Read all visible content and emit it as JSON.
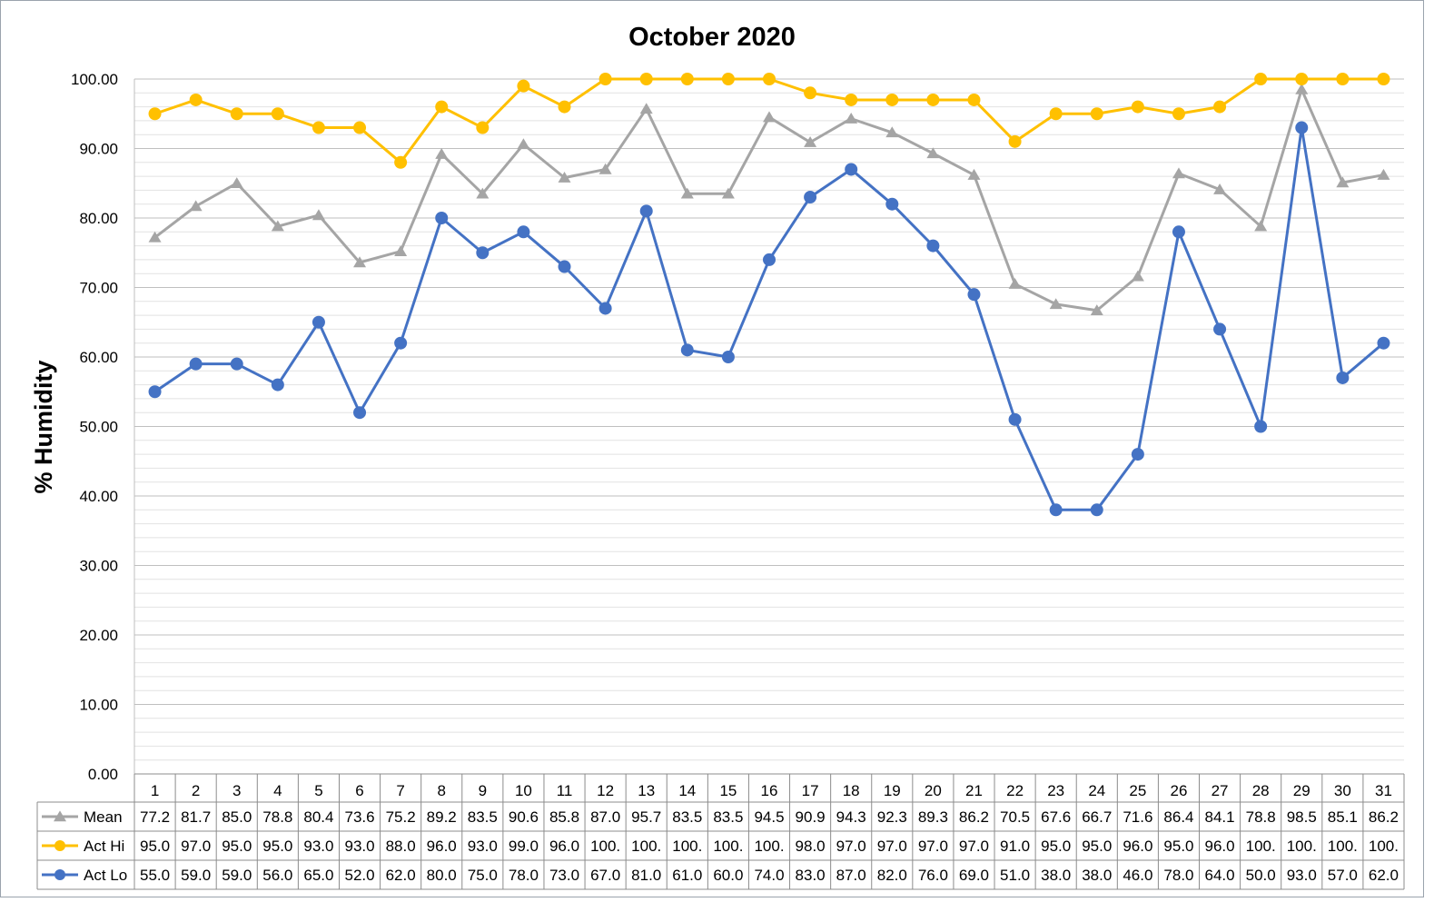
{
  "chart_data": {
    "type": "line",
    "title": "October 2020",
    "xlabel": "",
    "ylabel": "% Humidity",
    "ylim": [
      0,
      100
    ],
    "y_major_step": 10,
    "y_minor_step": 2,
    "y_tick_labels": [
      "0.00",
      "10.00",
      "20.00",
      "30.00",
      "40.00",
      "50.00",
      "60.00",
      "70.00",
      "80.00",
      "90.00",
      "100.00"
    ],
    "grid": true,
    "legend": "data-table-below",
    "categories": [
      "1",
      "2",
      "3",
      "4",
      "5",
      "6",
      "7",
      "8",
      "9",
      "10",
      "11",
      "12",
      "13",
      "14",
      "15",
      "16",
      "17",
      "18",
      "19",
      "20",
      "21",
      "22",
      "23",
      "24",
      "25",
      "26",
      "27",
      "28",
      "29",
      "30",
      "31"
    ],
    "series": [
      {
        "name": "Mean",
        "marker": "triangle",
        "color": "#a5a5a5",
        "values": [
          77.2,
          81.7,
          85.0,
          78.8,
          80.4,
          73.6,
          75.2,
          89.2,
          83.5,
          90.6,
          85.8,
          87.0,
          95.7,
          83.5,
          83.5,
          94.5,
          90.9,
          94.3,
          92.3,
          89.3,
          86.2,
          70.5,
          67.6,
          66.7,
          71.6,
          86.4,
          84.1,
          78.8,
          98.5,
          85.1,
          86.2
        ],
        "labels": [
          "77.2",
          "81.7",
          "85.0",
          "78.8",
          "80.4",
          "73.6",
          "75.2",
          "89.2",
          "83.5",
          "90.6",
          "85.8",
          "87.0",
          "95.7",
          "83.5",
          "83.5",
          "94.5",
          "90.9",
          "94.3",
          "92.3",
          "89.3",
          "86.2",
          "70.5",
          "67.6",
          "66.7",
          "71.6",
          "86.4",
          "84.1",
          "78.8",
          "98.5",
          "85.1",
          "86.2"
        ]
      },
      {
        "name": "Act Hi",
        "marker": "circle",
        "color": "#ffc000",
        "values": [
          95,
          97,
          95,
          95,
          93,
          93,
          88,
          96,
          93,
          99,
          96,
          100,
          100,
          100,
          100,
          100,
          98,
          97,
          97,
          97,
          97,
          91,
          95,
          95,
          96,
          95,
          96,
          100,
          100,
          100,
          100
        ],
        "labels": [
          "95.0",
          "97.0",
          "95.0",
          "95.0",
          "93.0",
          "93.0",
          "88.0",
          "96.0",
          "93.0",
          "99.0",
          "96.0",
          "100.",
          "100.",
          "100.",
          "100.",
          "100.",
          "98.0",
          "97.0",
          "97.0",
          "97.0",
          "97.0",
          "91.0",
          "95.0",
          "95.0",
          "96.0",
          "95.0",
          "96.0",
          "100.",
          "100.",
          "100.",
          "100."
        ]
      },
      {
        "name": "Act Lo",
        "marker": "circle",
        "color": "#4472c4",
        "values": [
          55,
          59,
          59,
          56,
          65,
          52,
          62,
          80,
          75,
          78,
          73,
          67,
          81,
          61,
          60,
          74,
          83,
          87,
          82,
          76,
          69,
          51,
          38,
          38,
          46,
          78,
          64,
          50,
          93,
          57,
          62
        ],
        "labels": [
          "55.0",
          "59.0",
          "59.0",
          "56.0",
          "65.0",
          "52.0",
          "62.0",
          "80.0",
          "75.0",
          "78.0",
          "73.0",
          "67.0",
          "81.0",
          "61.0",
          "60.0",
          "74.0",
          "83.0",
          "87.0",
          "82.0",
          "76.0",
          "69.0",
          "51.0",
          "38.0",
          "38.0",
          "46.0",
          "78.0",
          "64.0",
          "50.0",
          "93.0",
          "57.0",
          "62.0"
        ]
      }
    ]
  }
}
